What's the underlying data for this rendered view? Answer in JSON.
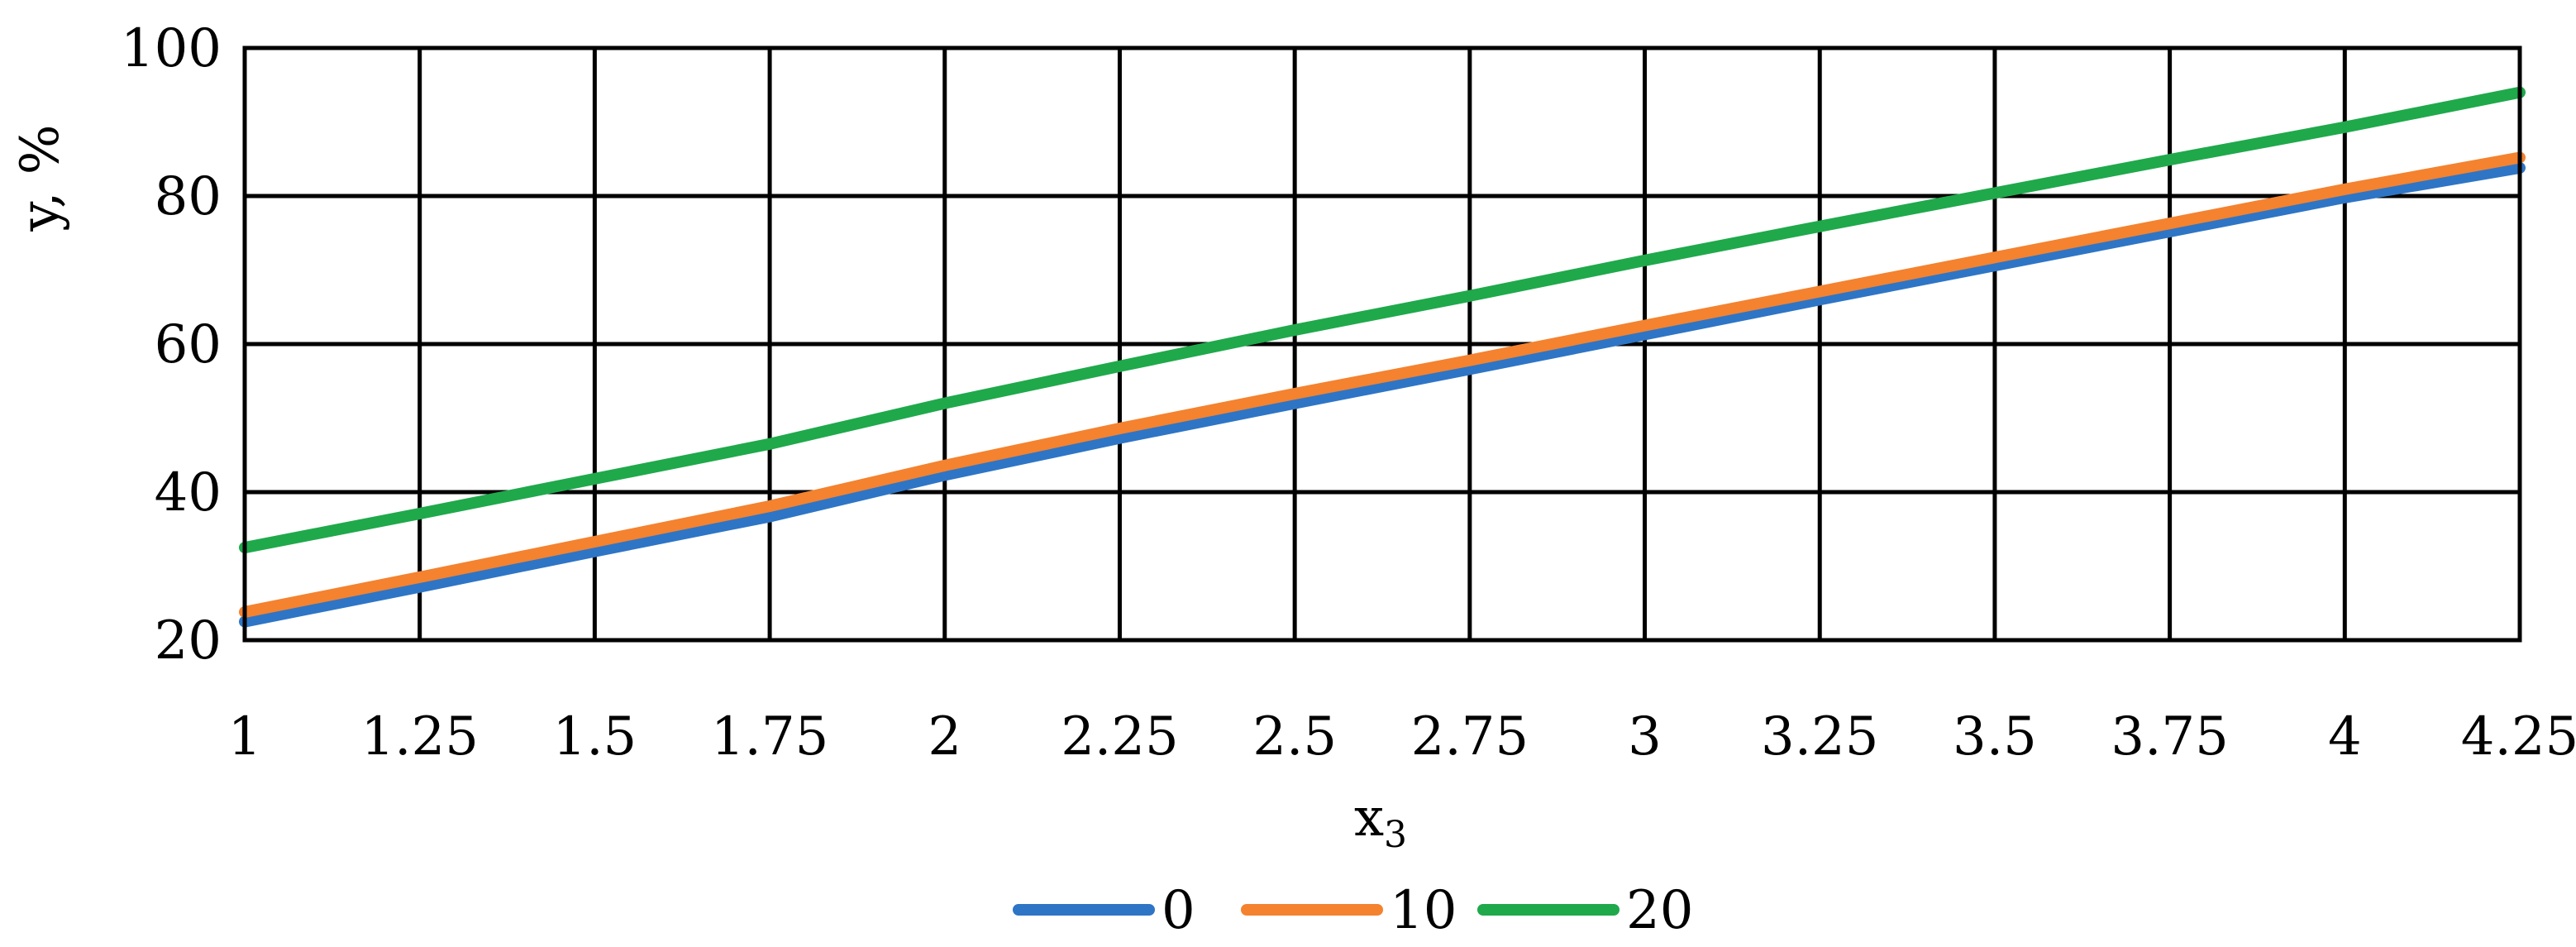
{
  "chart_data": {
    "type": "line",
    "title": "",
    "xlabel": "x",
    "xlabel_subscript": "3",
    "ylabel": "y, %",
    "x": [
      1,
      1.25,
      1.5,
      1.75,
      2,
      2.25,
      2.5,
      2.75,
      3,
      3.25,
      3.5,
      3.75,
      4,
      4.25
    ],
    "x_tick_labels": [
      "1",
      "1.25",
      "1.5",
      "1.75",
      "2",
      "2.25",
      "2.5",
      "2.75",
      "3",
      "3.25",
      "3.5",
      "3.75",
      "4",
      "4.25"
    ],
    "y_tick_labels": [
      "20",
      "40",
      "60",
      "80",
      "100"
    ],
    "xlim": [
      1,
      4.25
    ],
    "ylim": [
      20,
      100
    ],
    "yticks": [
      20,
      40,
      60,
      80,
      100
    ],
    "grid": true,
    "legend_position": "bottom",
    "series": [
      {
        "name": "0",
        "color": "#2E75C6",
        "values": [
          22.5,
          27.2,
          32.0,
          36.7,
          42.3,
          47.3,
          52.0,
          56.6,
          61.3,
          66.0,
          70.6,
          75.2,
          79.8,
          83.8
        ]
      },
      {
        "name": "10",
        "color": "#F4822F",
        "values": [
          23.8,
          28.5,
          33.3,
          38.1,
          43.6,
          48.6,
          53.3,
          57.8,
          62.5,
          67.1,
          71.7,
          76.3,
          80.9,
          85.2
        ]
      },
      {
        "name": "20",
        "color": "#1FA94B",
        "values": [
          32.5,
          37.1,
          41.8,
          46.5,
          52.0,
          57.0,
          61.9,
          66.5,
          71.3,
          75.9,
          80.4,
          84.9,
          89.3,
          94.0
        ]
      }
    ]
  }
}
